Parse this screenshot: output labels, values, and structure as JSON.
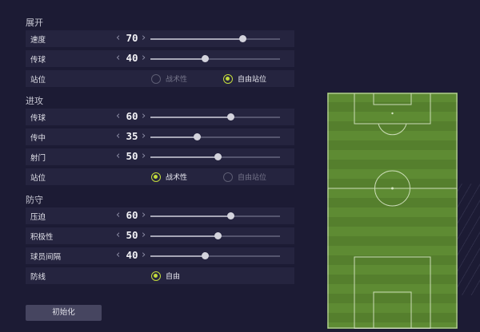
{
  "colors": {
    "background": "#1c1b34",
    "row": "#25243f",
    "accent": "#c2da3c",
    "pitch": "#5d8a32"
  },
  "sections": {
    "build_up": {
      "title": "展开",
      "speed": {
        "label": "速度",
        "value": "70"
      },
      "passing": {
        "label": "传球",
        "value": "40"
      },
      "positioning": {
        "label": "站位",
        "option_a": "战术性",
        "option_b": "自由站位",
        "selected": "自由站位"
      }
    },
    "chance_creation": {
      "title": "进攻",
      "passing": {
        "label": "传球",
        "value": "60"
      },
      "crossing": {
        "label": "传中",
        "value": "35"
      },
      "shooting": {
        "label": "射门",
        "value": "50"
      },
      "positioning": {
        "label": "站位",
        "option_a": "战术性",
        "option_b": "自由站位",
        "selected": "战术性"
      }
    },
    "defence": {
      "title": "防守",
      "pressure": {
        "label": "压迫",
        "value": "60"
      },
      "aggression": {
        "label": "积极性",
        "value": "50"
      },
      "width": {
        "label": "球员间隔",
        "value": "40"
      },
      "defensive_line": {
        "label": "防线",
        "option_a": "自由",
        "selected": "自由"
      }
    }
  },
  "reset_button": "初始化",
  "icons": {
    "left": "chevron-left-icon",
    "right": "chevron-right-icon"
  }
}
